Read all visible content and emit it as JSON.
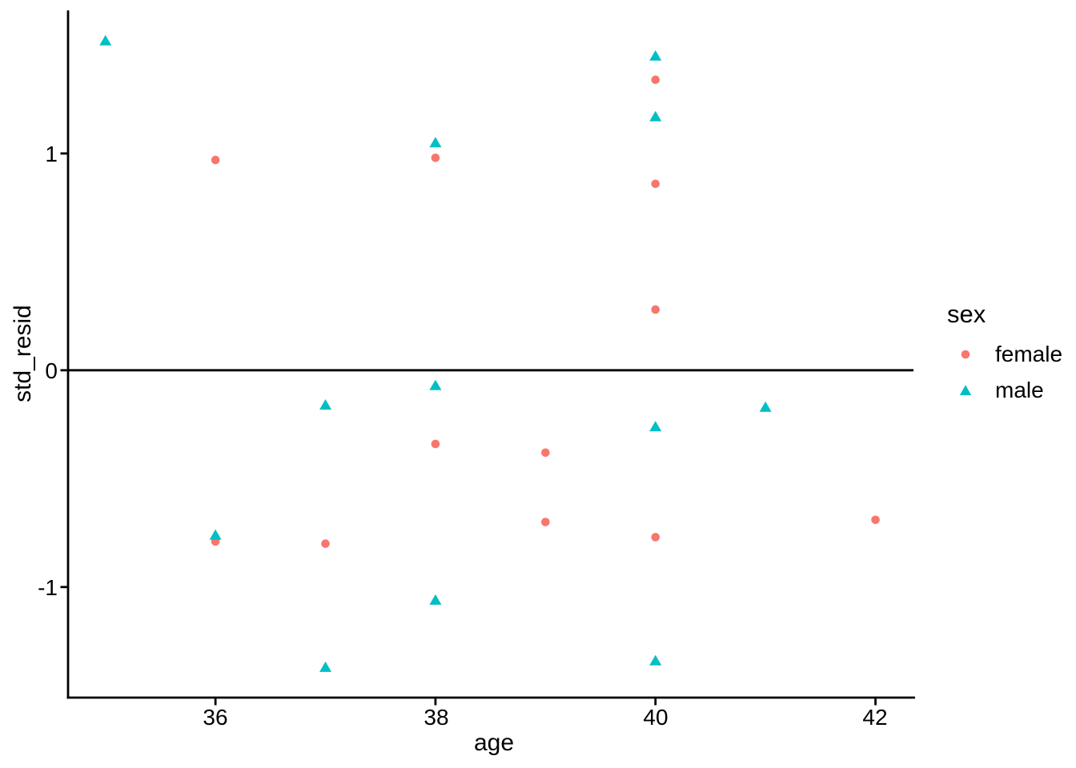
{
  "chart_data": {
    "type": "scatter",
    "title": "",
    "xlabel": "age",
    "ylabel": "std_resid",
    "x_ticks": [
      36,
      38,
      40,
      42
    ],
    "y_ticks": [
      1,
      0,
      -1
    ],
    "x_tick_labels": [
      "36",
      "38",
      "40",
      "42"
    ],
    "y_tick_labels": [
      "1",
      "0",
      "-1"
    ],
    "xlim": [
      34.66,
      42.36
    ],
    "ylim": [
      -1.51,
      1.66
    ],
    "grid": false,
    "reference_line_y": 0,
    "legend": {
      "title": "sex",
      "position": "right",
      "entries": [
        {
          "label": "female",
          "marker": "circle",
          "color": "#F8766D"
        },
        {
          "label": "male",
          "marker": "triangle",
          "color": "#00BFC4"
        }
      ]
    },
    "series": [
      {
        "name": "female",
        "marker": "circle",
        "color": "#F8766D",
        "points": [
          {
            "age": 36,
            "std_resid": 0.97
          },
          {
            "age": 38,
            "std_resid": 0.98
          },
          {
            "age": 40,
            "std_resid": 1.34
          },
          {
            "age": 40,
            "std_resid": 0.86
          },
          {
            "age": 40,
            "std_resid": 0.28
          },
          {
            "age": 38,
            "std_resid": -0.34
          },
          {
            "age": 39,
            "std_resid": -0.38
          },
          {
            "age": 39,
            "std_resid": -0.7
          },
          {
            "age": 36,
            "std_resid": -0.79
          },
          {
            "age": 37,
            "std_resid": -0.8
          },
          {
            "age": 40,
            "std_resid": -0.77
          },
          {
            "age": 42,
            "std_resid": -0.69
          }
        ]
      },
      {
        "name": "male",
        "marker": "triangle",
        "color": "#00BFC4",
        "points": [
          {
            "age": 35,
            "std_resid": 1.52
          },
          {
            "age": 40,
            "std_resid": 1.45
          },
          {
            "age": 40,
            "std_resid": 1.17
          },
          {
            "age": 38,
            "std_resid": 1.05
          },
          {
            "age": 38,
            "std_resid": -0.07
          },
          {
            "age": 37,
            "std_resid": -0.16
          },
          {
            "age": 41,
            "std_resid": -0.17
          },
          {
            "age": 40,
            "std_resid": -0.26
          },
          {
            "age": 36,
            "std_resid": -0.76
          },
          {
            "age": 38,
            "std_resid": -1.06
          },
          {
            "age": 37,
            "std_resid": -1.37
          },
          {
            "age": 40,
            "std_resid": -1.34
          }
        ]
      }
    ],
    "colors": {
      "axis": "#000000",
      "text": "#000000",
      "background": "#FFFFFF"
    }
  }
}
